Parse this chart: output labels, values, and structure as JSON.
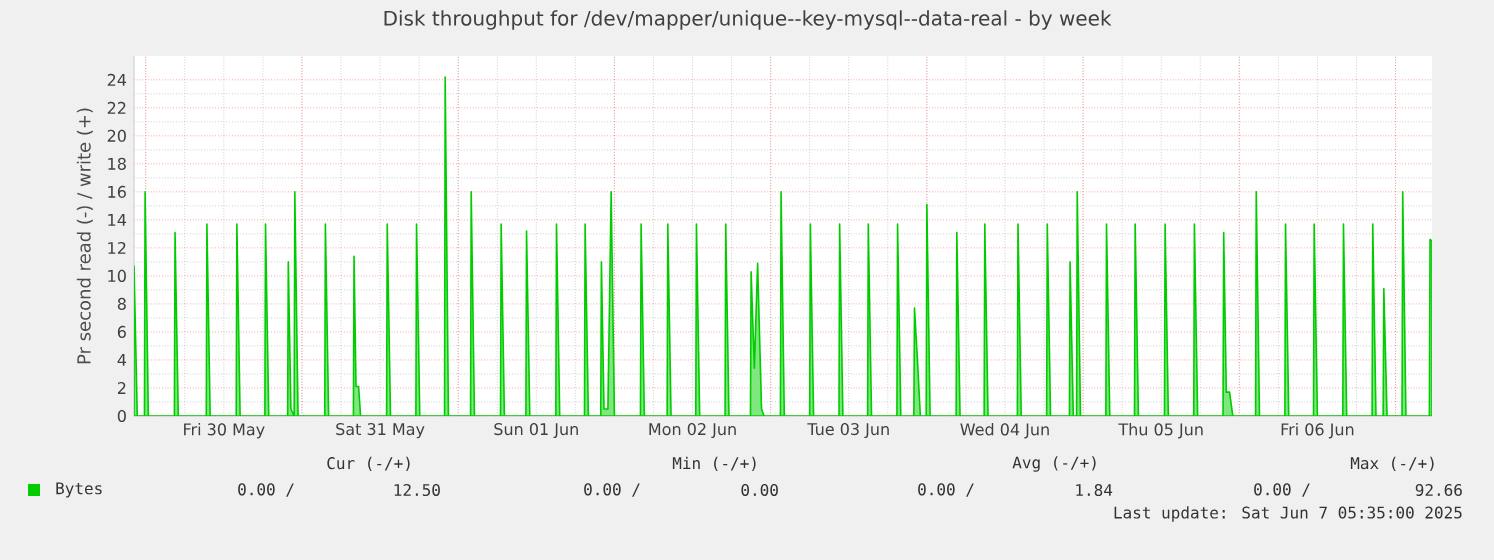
{
  "chart_data": {
    "type": "area",
    "title": "Disk throughput for /dev/mapper/unique--key-mysql--data-real - by week",
    "ylabel": "Pr second read (-) / write (+)",
    "xlim": [
      "2025-05-29T22:12",
      "2025-06-07T05:36"
    ],
    "xticks": [
      {
        "value": "2025-05-30T00:00",
        "label": null
      },
      {
        "value": "2025-05-30T12:00",
        "label": "Fri 30 May"
      },
      {
        "value": "2025-05-31T00:00",
        "label": null
      },
      {
        "value": "2025-05-31T12:00",
        "label": "Sat 31 May"
      },
      {
        "value": "2025-06-01T00:00",
        "label": null
      },
      {
        "value": "2025-06-01T12:00",
        "label": "Sun 01 Jun"
      },
      {
        "value": "2025-06-02T00:00",
        "label": null
      },
      {
        "value": "2025-06-02T12:00",
        "label": "Mon 02 Jun"
      },
      {
        "value": "2025-06-03T00:00",
        "label": null
      },
      {
        "value": "2025-06-03T12:00",
        "label": "Tue 03 Jun"
      },
      {
        "value": "2025-06-04T00:00",
        "label": null
      },
      {
        "value": "2025-06-04T12:00",
        "label": "Wed 04 Jun"
      },
      {
        "value": "2025-06-05T00:00",
        "label": null
      },
      {
        "value": "2025-06-05T12:00",
        "label": "Thu 05 Jun"
      },
      {
        "value": "2025-06-06T00:00",
        "label": null
      },
      {
        "value": "2025-06-06T12:00",
        "label": "Fri 06 Jun"
      },
      {
        "value": "2025-06-07T00:00",
        "label": null
      }
    ],
    "ylim": [
      0,
      25.7
    ],
    "yticks": [
      0,
      2,
      4,
      6,
      8,
      10,
      12,
      14,
      16,
      18,
      20,
      22,
      24
    ],
    "grid": true,
    "legend": "bottom left",
    "series": [
      {
        "name": "Bytes",
        "color": "#00cc00",
        "x": [
          "2025-05-29T22:12",
          "2025-05-29T22:42",
          "2025-05-29T23:48",
          "2025-05-29T23:54",
          "2025-05-30T00:24",
          "2025-05-30T04:24",
          "2025-05-30T04:30",
          "2025-05-30T05:00",
          "2025-05-30T09:18",
          "2025-05-30T09:24",
          "2025-05-30T09:54",
          "2025-05-30T13:54",
          "2025-05-30T14:00",
          "2025-05-30T14:30",
          "2025-05-30T18:18",
          "2025-05-30T18:24",
          "2025-05-30T18:54",
          "2025-05-30T21:48",
          "2025-05-30T21:54",
          "2025-05-30T22:18",
          "2025-05-30T22:48",
          "2025-05-30T22:54",
          "2025-05-30T23:24",
          "2025-05-31T03:30",
          "2025-05-31T03:36",
          "2025-05-31T04:06",
          "2025-05-31T07:54",
          "2025-05-31T08:00",
          "2025-05-31T08:18",
          "2025-05-31T08:42",
          "2025-05-31T09:00",
          "2025-05-31T13:00",
          "2025-05-31T13:06",
          "2025-05-31T13:36",
          "2025-05-31T17:30",
          "2025-05-31T17:36",
          "2025-05-31T18:06",
          "2025-05-31T21:54",
          "2025-05-31T22:00",
          "2025-05-31T22:30",
          "2025-06-01T01:54",
          "2025-06-01T02:00",
          "2025-06-01T02:30",
          "2025-06-01T06:30",
          "2025-06-01T06:36",
          "2025-06-01T07:06",
          "2025-06-01T10:24",
          "2025-06-01T10:30",
          "2025-06-01T11:00",
          "2025-06-01T15:00",
          "2025-06-01T15:06",
          "2025-06-01T15:36",
          "2025-06-01T19:24",
          "2025-06-01T19:30",
          "2025-06-01T20:00",
          "2025-06-01T21:54",
          "2025-06-01T22:00",
          "2025-06-01T22:24",
          "2025-06-01T23:00",
          "2025-06-01T23:30",
          "2025-06-02T00:00",
          "2025-06-02T04:00",
          "2025-06-02T04:06",
          "2025-06-02T04:36",
          "2025-06-02T08:06",
          "2025-06-02T08:12",
          "2025-06-02T08:42",
          "2025-06-02T12:30",
          "2025-06-02T12:36",
          "2025-06-02T13:06",
          "2025-06-02T17:00",
          "2025-06-02T17:06",
          "2025-06-02T17:36",
          "2025-06-02T20:54",
          "2025-06-02T21:00",
          "2025-06-02T21:30",
          "2025-06-02T22:00",
          "2025-06-02T22:36",
          "2025-06-02T23:00",
          "2025-06-03T01:30",
          "2025-06-03T01:36",
          "2025-06-03T02:06",
          "2025-06-03T06:00",
          "2025-06-03T06:06",
          "2025-06-03T06:36",
          "2025-06-03T10:30",
          "2025-06-03T10:36",
          "2025-06-03T11:06",
          "2025-06-03T14:54",
          "2025-06-03T15:00",
          "2025-06-03T15:30",
          "2025-06-03T19:24",
          "2025-06-03T19:30",
          "2025-06-03T20:00",
          "2025-06-03T22:00",
          "2025-06-03T22:06",
          "2025-06-03T22:36",
          "2025-06-03T23:00",
          "2025-06-03T23:54",
          "2025-06-04T00:00",
          "2025-06-04T00:30",
          "2025-06-04T04:30",
          "2025-06-04T04:36",
          "2025-06-04T05:06",
          "2025-06-04T08:48",
          "2025-06-04T08:54",
          "2025-06-04T09:24",
          "2025-06-04T13:54",
          "2025-06-04T14:00",
          "2025-06-04T14:30",
          "2025-06-04T18:24",
          "2025-06-04T18:30",
          "2025-06-04T19:00",
          "2025-06-04T21:54",
          "2025-06-04T22:00",
          "2025-06-04T22:30",
          "2025-06-04T23:00",
          "2025-06-04T23:06",
          "2025-06-04T23:36",
          "2025-06-05T03:30",
          "2025-06-05T03:36",
          "2025-06-05T04:06",
          "2025-06-05T07:54",
          "2025-06-05T08:00",
          "2025-06-05T08:30",
          "2025-06-05T12:30",
          "2025-06-05T12:36",
          "2025-06-05T13:06",
          "2025-06-05T17:00",
          "2025-06-05T17:06",
          "2025-06-05T17:36",
          "2025-06-05T21:30",
          "2025-06-05T21:36",
          "2025-06-05T22:00",
          "2025-06-05T22:30",
          "2025-06-05T23:00",
          "2025-06-06T02:30",
          "2025-06-06T02:36",
          "2025-06-06T03:06",
          "2025-06-06T07:00",
          "2025-06-06T07:06",
          "2025-06-06T07:36",
          "2025-06-06T11:24",
          "2025-06-06T11:30",
          "2025-06-06T12:00",
          "2025-06-06T15:54",
          "2025-06-06T16:00",
          "2025-06-06T16:30",
          "2025-06-06T20:24",
          "2025-06-06T20:30",
          "2025-06-06T21:00",
          "2025-06-06T22:06",
          "2025-06-06T22:12",
          "2025-06-06T22:42",
          "2025-06-07T01:00",
          "2025-06-07T01:06",
          "2025-06-07T01:36",
          "2025-06-07T05:12",
          "2025-06-07T05:18",
          "2025-06-07T05:36"
        ],
        "values": [
          10.7,
          0,
          0,
          16.0,
          0,
          0,
          13.1,
          0,
          0,
          13.7,
          0,
          0,
          13.7,
          0,
          0,
          13.7,
          0,
          0,
          11.0,
          0.5,
          0,
          16.0,
          0,
          0,
          13.7,
          0,
          0,
          11.4,
          2.1,
          2.1,
          0,
          0,
          13.7,
          0,
          0,
          13.7,
          0,
          0,
          24.2,
          0,
          0,
          16.0,
          0,
          0,
          13.7,
          0,
          0,
          13.2,
          0,
          0,
          13.7,
          0,
          0,
          13.7,
          0,
          0,
          11.0,
          0.5,
          0.5,
          16.0,
          0,
          0,
          13.7,
          0,
          0,
          13.7,
          0,
          0,
          13.7,
          0,
          0,
          13.7,
          0,
          0,
          10.3,
          3.4,
          10.9,
          0.5,
          0,
          0,
          16.0,
          0,
          0,
          13.7,
          0,
          0,
          13.7,
          0,
          0,
          13.7,
          0,
          0,
          13.7,
          0,
          0,
          7.7,
          3.6,
          0,
          0,
          15.1,
          0,
          0,
          13.1,
          0,
          0,
          13.7,
          0,
          0,
          13.7,
          0,
          0,
          13.7,
          0,
          0,
          11.0,
          0,
          0,
          16.0,
          0,
          0,
          13.7,
          0,
          0,
          13.7,
          0,
          0,
          13.7,
          0,
          0,
          13.7,
          0,
          0,
          13.1,
          1.7,
          1.7,
          0,
          0,
          16.0,
          0,
          0,
          13.7,
          0,
          0,
          13.7,
          0,
          0,
          13.7,
          0,
          0,
          13.7,
          0,
          0,
          9.1,
          0,
          0,
          16.0,
          0,
          0,
          12.6,
          12.5
        ]
      }
    ],
    "annotations": [
      "Cur (-/+)",
      "Min (-/+)",
      "Avg (-/+)",
      "Max (-/+)",
      "0.00 /",
      "12.50",
      "0.00 /",
      "0.00",
      "0.00 /",
      "1.84",
      "0.00 /",
      "92.66",
      "Last update: Sat Jun  7 05:35:00 2025"
    ]
  }
}
